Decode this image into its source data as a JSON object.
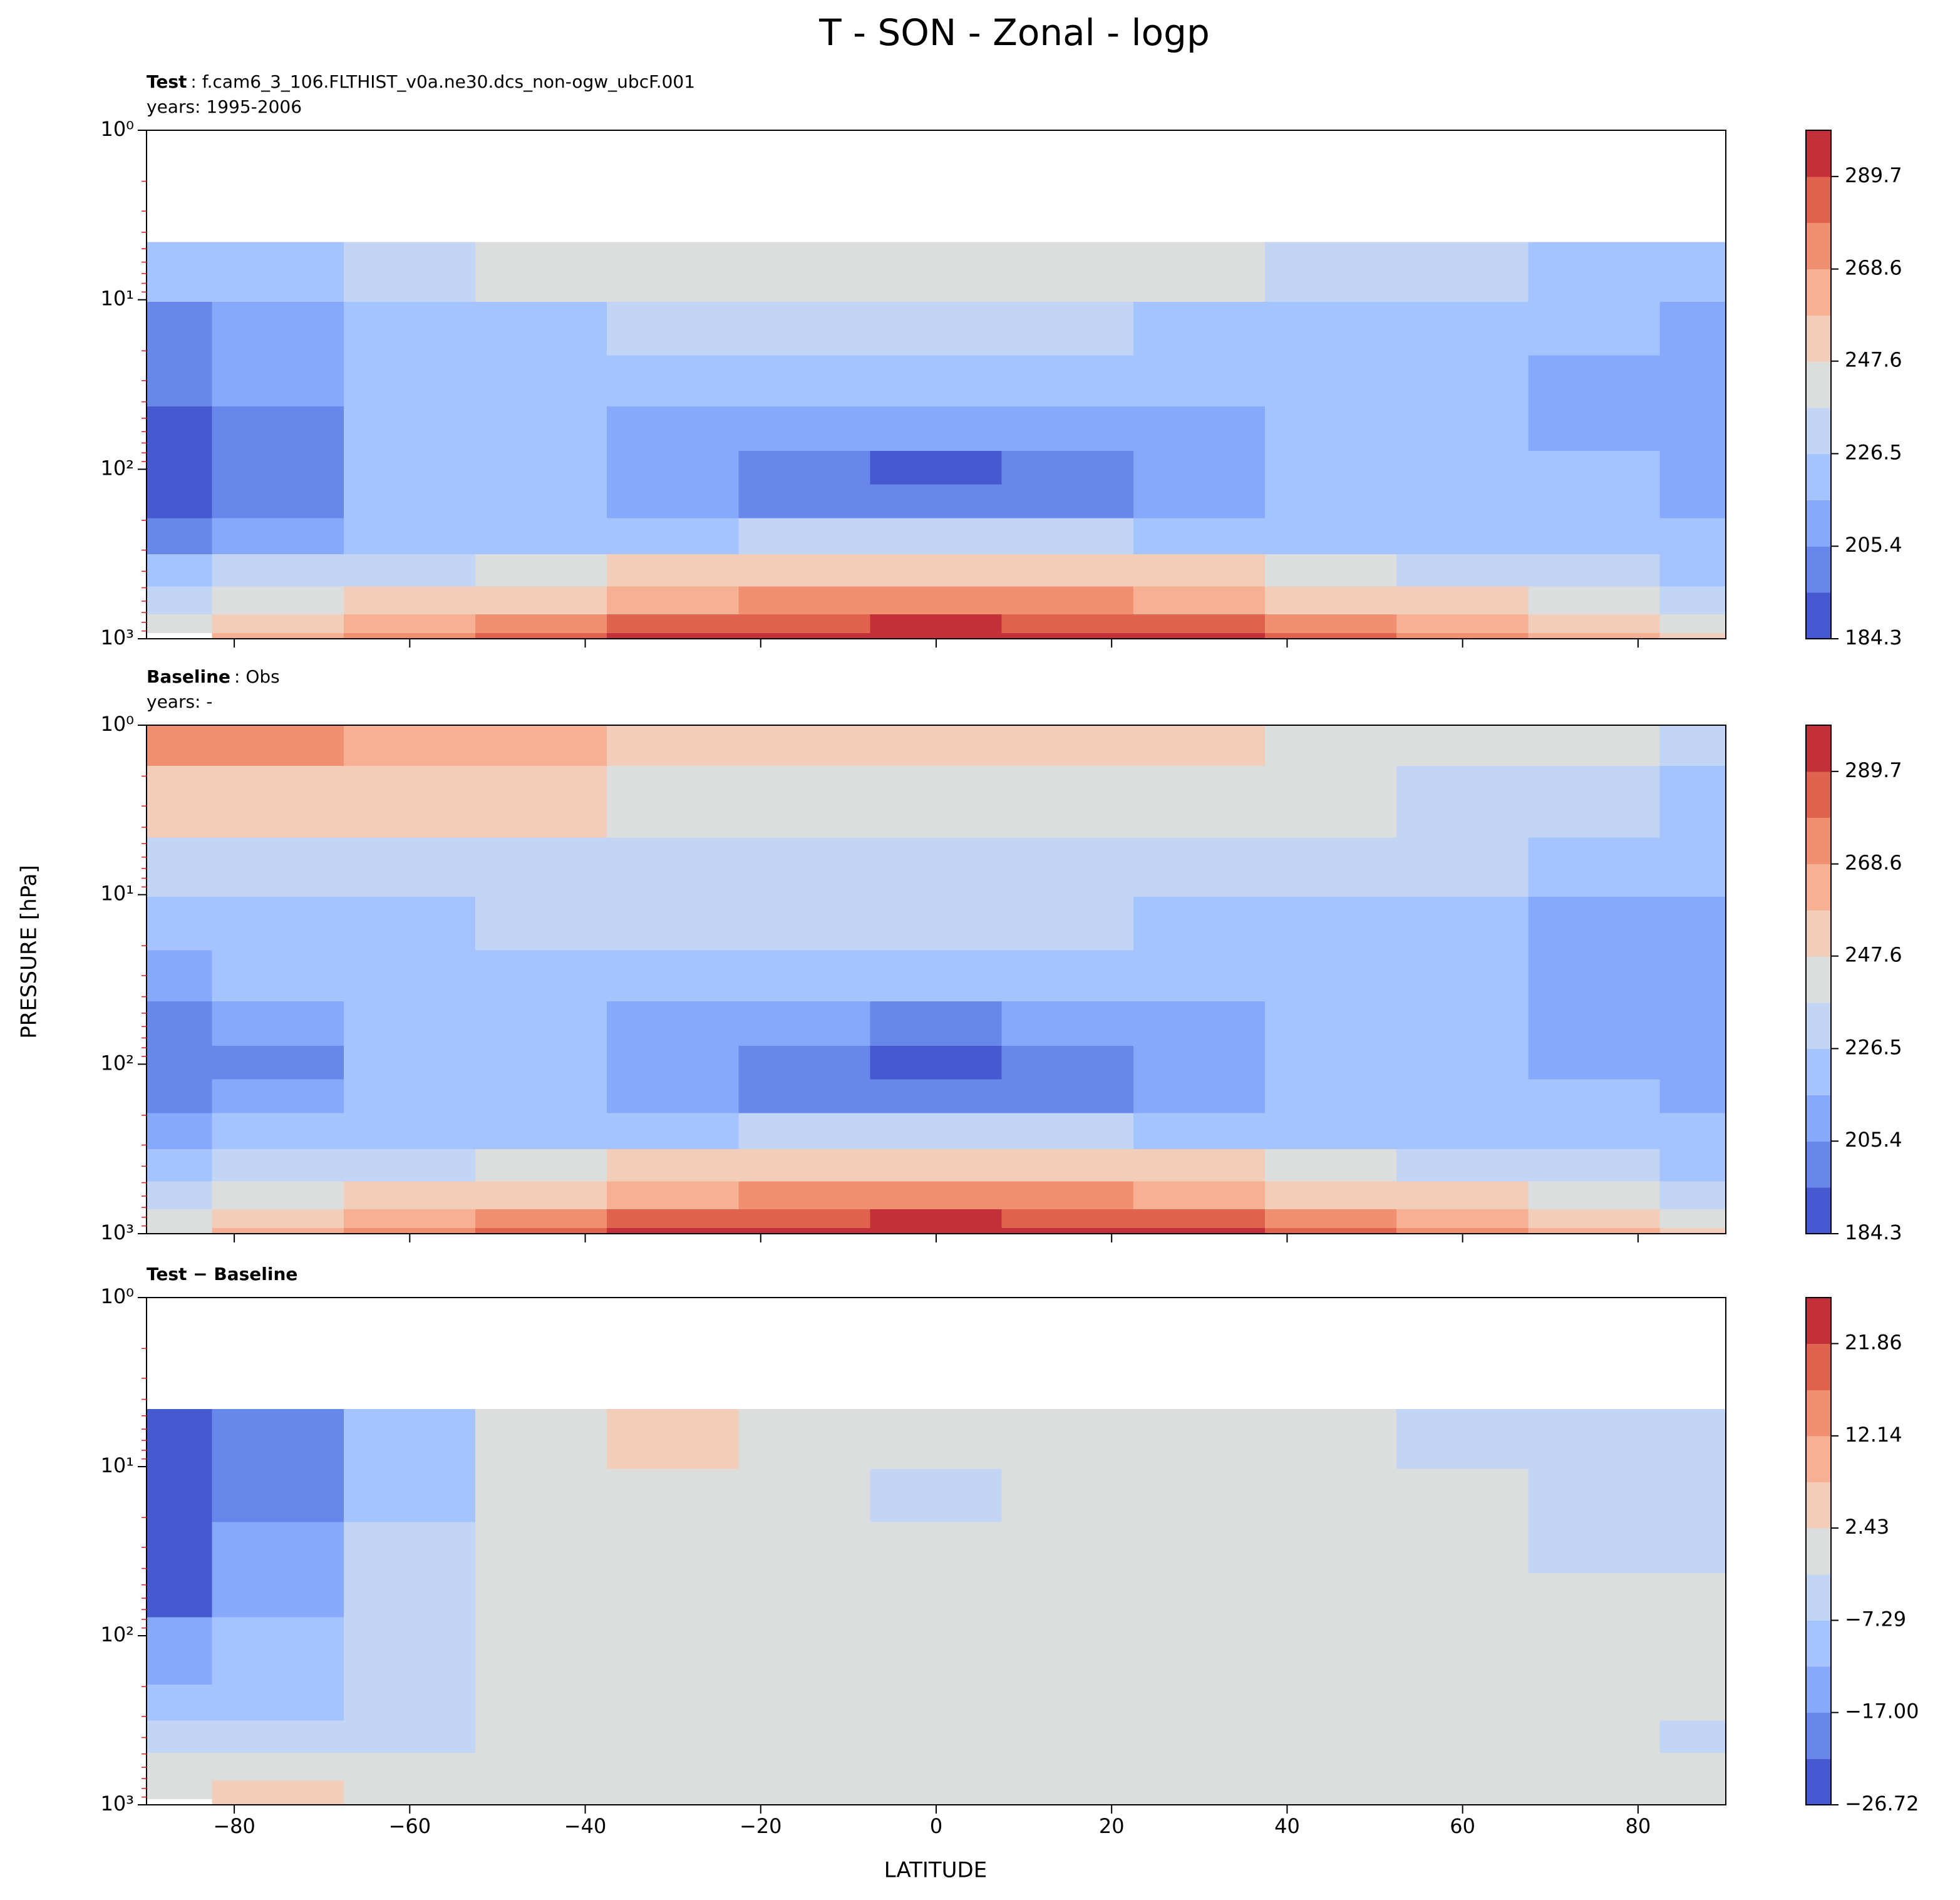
{
  "suptitle": "T - SON - Zonal - logp",
  "xlabel": "LATITUDE",
  "ylabel": "PRESSURE [hPa]",
  "chart_data": [
    {
      "type": "contourf",
      "label": "Test",
      "case": ": f.cam6_3_106.FLTHIST_v0a.ne30.dcs_non-ogw_ubcF.001",
      "years": "years: 1995-2006",
      "x": [
        -90,
        -75,
        -60,
        -45,
        -30,
        -15,
        0,
        15,
        30,
        45,
        60,
        75,
        90
      ],
      "y": [
        1000,
        850,
        600,
        400,
        250,
        150,
        100,
        60,
        30,
        15,
        7,
        3,
        1
      ],
      "z": [
        [
          null,
          262,
          272,
          280,
          290,
          297,
          299,
          298,
          292,
          282,
          272,
          262,
          258
        ],
        [
          245,
          255,
          265,
          272,
          280,
          288,
          290,
          288,
          282,
          272,
          262,
          250,
          245
        ],
        [
          232,
          242,
          250,
          258,
          265,
          272,
          274,
          272,
          265,
          257,
          250,
          240,
          236
        ],
        [
          220,
          228,
          234,
          240,
          248,
          255,
          258,
          255,
          248,
          240,
          234,
          228,
          226
        ],
        [
          205,
          214,
          220,
          222,
          225,
          228,
          230,
          228,
          225,
          222,
          222,
          218,
          218
        ],
        [
          190,
          205,
          220,
          218,
          210,
          205,
          202,
          205,
          210,
          218,
          222,
          218,
          215
        ],
        [
          189,
          203,
          220,
          218,
          208,
          200,
          194,
          200,
          208,
          218,
          222,
          216,
          212
        ],
        [
          190,
          204,
          220,
          220,
          215,
          208,
          206,
          208,
          215,
          220,
          222,
          214,
          210
        ],
        [
          195,
          206,
          218,
          222,
          222,
          220,
          220,
          220,
          222,
          222,
          220,
          214,
          212
        ],
        [
          205,
          212,
          220,
          226,
          228,
          228,
          228,
          228,
          226,
          224,
          222,
          216,
          214
        ],
        [
          222,
          226,
          230,
          238,
          239,
          240,
          239,
          239,
          238,
          234,
          228,
          222,
          220
        ],
        [
          null,
          null,
          null,
          null,
          null,
          null,
          null,
          null,
          null,
          null,
          null,
          null,
          null
        ],
        [
          null,
          null,
          null,
          null,
          null,
          null,
          null,
          null,
          null,
          null,
          null,
          null,
          null
        ]
      ],
      "levels": [
        184.3,
        194.84,
        205.38,
        215.92,
        226.46,
        237,
        247.54,
        258.08,
        268.62,
        279.16,
        289.7,
        300.24
      ],
      "colors": [
        "#4659d1",
        "#6788ea",
        "#86a9fc",
        "#a5c3fe",
        "#c3d5f4",
        "#dcdddd",
        "#f1cdba",
        "#f6b093",
        "#f18f71",
        "#df634f",
        "#c3303a"
      ],
      "cbar_ticks": [
        184.3,
        205.4,
        226.5,
        247.6,
        268.6,
        289.7
      ],
      "xlim": [
        -90,
        90
      ],
      "ylim": [
        1000,
        1
      ],
      "log_y": true,
      "show_xticklabels": false,
      "xticks": [
        {
          "value": -80,
          "label": "−80"
        },
        {
          "value": -60,
          "label": "−60"
        },
        {
          "value": -40,
          "label": "−40"
        },
        {
          "value": -20,
          "label": "−20"
        },
        0,
        20,
        40,
        60,
        80
      ],
      "yticks": [
        {
          "value": 1,
          "label": "10⁰"
        },
        {
          "value": 10,
          "label": "10¹"
        },
        {
          "value": 100,
          "label": "10²"
        },
        {
          "value": 1000,
          "label": "10³"
        }
      ],
      "yminorticks": [
        2,
        3,
        4,
        5,
        6,
        7,
        8,
        9,
        20,
        30,
        40,
        50,
        60,
        70,
        80,
        90,
        200,
        300,
        400,
        500,
        600,
        700,
        800,
        900
      ],
      "minor_tick_color": "#d62728"
    },
    {
      "type": "contourf",
      "label": "Baseline",
      "case": ": Obs",
      "years": "years: -",
      "x": [
        -90,
        -75,
        -60,
        -45,
        -30,
        -15,
        0,
        15,
        30,
        45,
        60,
        75,
        90
      ],
      "y": [
        1000,
        850,
        600,
        400,
        250,
        150,
        100,
        60,
        30,
        15,
        7,
        3,
        1
      ],
      "z": [
        [
          245,
          262,
          272,
          280,
          290,
          297,
          299,
          298,
          292,
          282,
          272,
          262,
          258
        ],
        [
          243,
          252,
          265,
          272,
          280,
          288,
          290,
          288,
          282,
          272,
          262,
          250,
          245
        ],
        [
          232,
          242,
          250,
          258,
          265,
          272,
          274,
          272,
          265,
          257,
          250,
          240,
          236
        ],
        [
          222,
          230,
          236,
          240,
          248,
          255,
          258,
          255,
          248,
          240,
          234,
          228,
          226
        ],
        [
          210,
          216,
          220,
          222,
          225,
          228,
          230,
          228,
          225,
          222,
          222,
          218,
          220
        ],
        [
          200,
          206,
          218,
          216,
          208,
          203,
          200,
          203,
          208,
          216,
          222,
          216,
          213
        ],
        [
          198,
          204,
          218,
          216,
          206,
          198,
          193,
          198,
          206,
          216,
          222,
          215,
          212
        ],
        [
          202,
          206,
          218,
          220,
          214,
          206,
          204,
          206,
          214,
          220,
          222,
          214,
          210
        ],
        [
          212,
          216,
          222,
          224,
          222,
          220,
          220,
          220,
          222,
          222,
          220,
          214,
          212
        ],
        [
          222,
          224,
          226,
          228,
          228,
          228,
          228,
          228,
          226,
          225,
          222,
          214,
          214
        ],
        [
          235,
          235,
          234,
          234,
          233,
          232,
          232,
          232,
          232,
          230,
          228,
          220,
          220
        ],
        [
          255,
          252,
          250,
          248,
          246,
          245,
          246,
          246,
          244,
          240,
          234,
          228,
          226
        ],
        [
          275,
          270,
          264,
          260,
          258,
          258,
          258,
          256,
          252,
          246,
          240,
          238,
          236
        ]
      ],
      "levels": [
        184.3,
        194.84,
        205.38,
        215.92,
        226.46,
        237,
        247.54,
        258.08,
        268.62,
        279.16,
        289.7,
        300.24
      ],
      "colors": [
        "#4659d1",
        "#6788ea",
        "#86a9fc",
        "#a5c3fe",
        "#c3d5f4",
        "#dcdddd",
        "#f1cdba",
        "#f6b093",
        "#f18f71",
        "#df634f",
        "#c3303a"
      ],
      "cbar_ticks": [
        184.3,
        205.4,
        226.5,
        247.6,
        268.6,
        289.7
      ],
      "xlim": [
        -90,
        90
      ],
      "ylim": [
        1000,
        1
      ],
      "log_y": true,
      "show_xticklabels": false,
      "xticks": [
        {
          "value": -80,
          "label": "−80"
        },
        {
          "value": -60,
          "label": "−60"
        },
        {
          "value": -40,
          "label": "−40"
        },
        {
          "value": -20,
          "label": "−20"
        },
        0,
        20,
        40,
        60,
        80
      ],
      "yticks": [
        {
          "value": 1,
          "label": "10⁰"
        },
        {
          "value": 10,
          "label": "10¹"
        },
        {
          "value": 100,
          "label": "10²"
        },
        {
          "value": 1000,
          "label": "10³"
        }
      ],
      "yminorticks": [
        2,
        3,
        4,
        5,
        6,
        7,
        8,
        9,
        20,
        30,
        40,
        50,
        60,
        70,
        80,
        90,
        200,
        300,
        400,
        500,
        600,
        700,
        800,
        900
      ],
      "minor_tick_color": "#d62728"
    },
    {
      "type": "contourf",
      "label": "Test − Baseline",
      "x": [
        -90,
        -75,
        -60,
        -45,
        -30,
        -15,
        0,
        15,
        30,
        45,
        60,
        75,
        90
      ],
      "y": [
        1000,
        850,
        600,
        400,
        250,
        150,
        100,
        60,
        30,
        15,
        7,
        3,
        1
      ],
      "z": [
        [
          null,
          6,
          1,
          0,
          0,
          0,
          0,
          0,
          0,
          0,
          0,
          0,
          0
        ],
        [
          -1,
          4,
          0,
          0,
          0,
          0,
          0,
          0,
          0,
          0,
          0,
          0,
          0
        ],
        [
          -1,
          -1,
          0,
          0,
          0,
          0,
          0,
          0,
          0,
          0,
          0,
          0,
          0
        ],
        [
          -5,
          -4,
          -3,
          0,
          0,
          0,
          0,
          0,
          0,
          0,
          0,
          0,
          -3
        ],
        [
          -10,
          -8,
          -4,
          0,
          0,
          0,
          0,
          0,
          0,
          0,
          0,
          0,
          0
        ],
        [
          -14,
          -11,
          -4,
          0,
          0,
          0,
          0,
          0,
          0,
          0,
          0,
          0,
          0
        ],
        [
          -16,
          -12,
          -4,
          0,
          0,
          0,
          0,
          0,
          0,
          0,
          0,
          0,
          0
        ],
        [
          -22,
          -14,
          -5,
          0,
          0,
          0,
          0,
          0,
          0,
          0,
          0,
          0,
          -1
        ],
        [
          -25,
          -16,
          -6,
          0,
          0,
          0,
          0,
          0,
          0,
          0,
          0,
          -3,
          -4
        ],
        [
          -28,
          -18,
          -8,
          -1,
          1,
          0,
          -3,
          0,
          0,
          0,
          0,
          -4,
          -5
        ],
        [
          -28,
          -18,
          -8,
          -1,
          4,
          0,
          -1,
          0,
          0,
          0,
          -3,
          -4,
          -5
        ],
        [
          null,
          null,
          null,
          null,
          null,
          null,
          null,
          null,
          null,
          null,
          null,
          null,
          null
        ],
        [
          null,
          null,
          null,
          null,
          null,
          null,
          null,
          null,
          null,
          null,
          null,
          null,
          null
        ]
      ],
      "levels": [
        -26.72,
        -21.863,
        -17.006,
        -12.149,
        -7.292,
        -2.435,
        2.422,
        7.279,
        12.136,
        16.993,
        21.85,
        26.707
      ],
      "colors": [
        "#4659d1",
        "#6788ea",
        "#86a9fc",
        "#a5c3fe",
        "#c3d5f4",
        "#dcdddd",
        "#f1cdba",
        "#f6b093",
        "#f18f71",
        "#df634f",
        "#c3303a"
      ],
      "cbar_ticks": [
        {
          "value": -26.72,
          "label": "−26.72"
        },
        {
          "value": -17.0,
          "label": "−17.00"
        },
        {
          "value": -7.29,
          "label": "−7.29"
        },
        2.43,
        12.14,
        21.86
      ],
      "xlim": [
        -90,
        90
      ],
      "ylim": [
        1000,
        1
      ],
      "log_y": true,
      "show_xticklabels": true,
      "xticks": [
        {
          "value": -80,
          "label": "−80"
        },
        {
          "value": -60,
          "label": "−60"
        },
        {
          "value": -40,
          "label": "−40"
        },
        {
          "value": -20,
          "label": "−20"
        },
        0,
        20,
        40,
        60,
        80
      ],
      "yticks": [
        {
          "value": 1,
          "label": "10⁰"
        },
        {
          "value": 10,
          "label": "10¹"
        },
        {
          "value": 100,
          "label": "10²"
        },
        {
          "value": 1000,
          "label": "10³"
        }
      ],
      "yminorticks": [
        2,
        3,
        4,
        5,
        6,
        7,
        8,
        9,
        20,
        30,
        40,
        50,
        60,
        70,
        80,
        90,
        200,
        300,
        400,
        500,
        600,
        700,
        800,
        900
      ],
      "minor_tick_color": "#d62728"
    }
  ]
}
